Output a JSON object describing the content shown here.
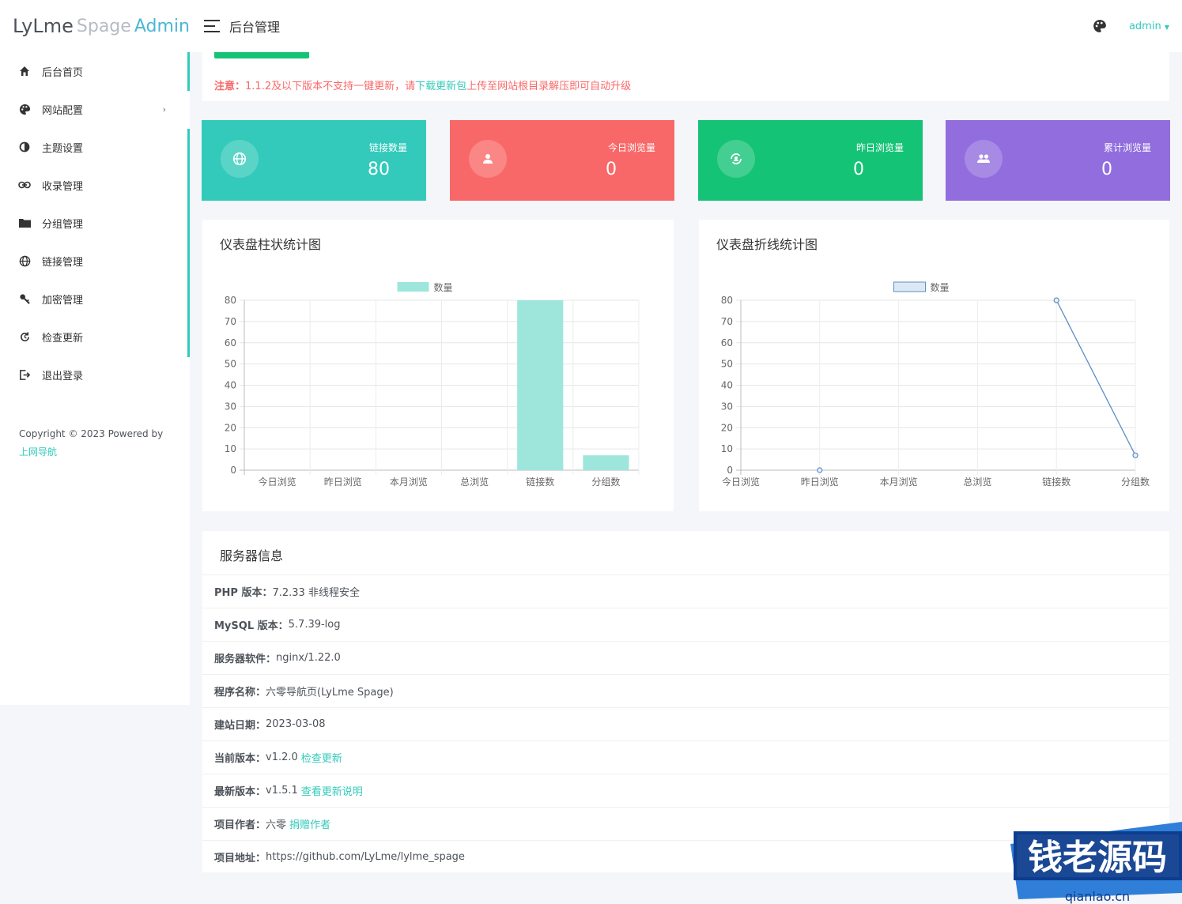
{
  "logo": {
    "part1": "LyLme",
    "part2": "Spage",
    "part3": "Admin"
  },
  "header": {
    "title": "后台管理",
    "user": "admin"
  },
  "sidebar": {
    "items": [
      {
        "label": "后台首页",
        "icon": "home-icon"
      },
      {
        "label": "网站配置",
        "icon": "palette-icon",
        "arrow": "›"
      },
      {
        "label": "主题设置",
        "icon": "contrast-icon"
      },
      {
        "label": "收录管理",
        "icon": "link-icon"
      },
      {
        "label": "分组管理",
        "icon": "folder-icon"
      },
      {
        "label": "链接管理",
        "icon": "globe-icon"
      },
      {
        "label": "加密管理",
        "icon": "key-icon"
      },
      {
        "label": "检查更新",
        "icon": "refresh-icon"
      },
      {
        "label": "退出登录",
        "icon": "logout-icon"
      }
    ],
    "copyright": "Copyright © 2023 Powered by",
    "copyright_link": "上网导航"
  },
  "notice": {
    "prefix": "注意：",
    "text1": "1.1.2及以下版本不支持一键更新，请",
    "link": "下载更新包",
    "text2": "上传至网站根目录解压即可自动升级"
  },
  "stats": [
    {
      "label": "链接数量",
      "value": "80",
      "color": "#33cabb",
      "icon": "globe-icon"
    },
    {
      "label": "今日浏览量",
      "value": "0",
      "color": "#f96868",
      "icon": "user-icon"
    },
    {
      "label": "昨日浏览量",
      "value": "0",
      "color": "#15c377",
      "icon": "sync-icon"
    },
    {
      "label": "累计浏览量",
      "value": "0",
      "color": "#926dde",
      "icon": "users-icon"
    }
  ],
  "chart_data": [
    {
      "type": "bar",
      "title": "仪表盘柱状统计图",
      "categories": [
        "今日浏览",
        "昨日浏览",
        "本月浏览",
        "总浏览",
        "链接数",
        "分组数"
      ],
      "series": [
        {
          "name": "数量",
          "values": [
            0,
            0,
            0,
            0,
            80,
            7
          ]
        }
      ],
      "ylim": [
        0,
        80
      ],
      "yticks": [
        0,
        10,
        20,
        30,
        40,
        50,
        60,
        70,
        80
      ],
      "legend": "top",
      "grid": true,
      "color": "#9ee6dc"
    },
    {
      "type": "line",
      "title": "仪表盘折线统计图",
      "categories": [
        "今日浏览",
        "昨日浏览",
        "本月浏览",
        "总浏览",
        "链接数",
        "分组数"
      ],
      "series": [
        {
          "name": "数量",
          "values": [
            null,
            0,
            null,
            null,
            80,
            7
          ]
        }
      ],
      "ylim": [
        0,
        80
      ],
      "yticks": [
        0,
        10,
        20,
        30,
        40,
        50,
        60,
        70,
        80
      ],
      "legend": "top",
      "grid": true,
      "color": "#5b8fc4"
    }
  ],
  "server": {
    "title": "服务器信息",
    "rows": [
      {
        "label": "PHP 版本：",
        "value": "7.2.33 非线程安全",
        "link": ""
      },
      {
        "label": "MySQL 版本：",
        "value": "5.7.39-log",
        "link": ""
      },
      {
        "label": "服务器软件：",
        "value": "nginx/1.22.0",
        "link": ""
      },
      {
        "label": "程序名称：",
        "value": "六零导航页(LyLme Spage)",
        "link": ""
      },
      {
        "label": "建站日期：",
        "value": "2023-03-08",
        "link": ""
      },
      {
        "label": "当前版本：",
        "value": "v1.2.0",
        "link": "检查更新"
      },
      {
        "label": "最新版本：",
        "value": " v1.5.1",
        "link": "查看更新说明"
      },
      {
        "label": "项目作者：",
        "value": "六零",
        "link": "捐赠作者"
      },
      {
        "label": "项目地址：",
        "value": "https://github.com/LyLme/lylme_spage",
        "link": ""
      }
    ]
  },
  "watermark": {
    "text": "钱老源码",
    "sub": "qianlao.cn"
  }
}
